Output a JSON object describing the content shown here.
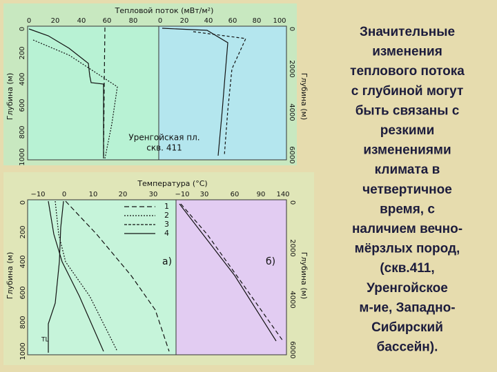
{
  "top_figure": {
    "title": "Тепловой поток (мВт/м²)",
    "x_ticks_left": [
      "0",
      "20",
      "40",
      "60",
      "80"
    ],
    "x_ticks_right": [
      "0",
      "20",
      "40",
      "60",
      "80",
      "100"
    ],
    "y_label_left": "Глубина (м)",
    "y_ticks_left": [
      "0",
      "200",
      "400",
      "600",
      "800",
      "1000"
    ],
    "y_label_right": "Глубина (м)",
    "y_ticks_right": [
      "0",
      "2000",
      "4000",
      "6000"
    ],
    "annotation": [
      "Уренгойская пл.",
      "скв. 411"
    ]
  },
  "bottom_figure": {
    "title": "Температура (°C)",
    "x_ticks_left": [
      "−10",
      "0",
      "10",
      "20",
      "30"
    ],
    "x_ticks_right": [
      "−10",
      "30",
      "60",
      "90",
      "140"
    ],
    "y_label_left": "Глубина (м)",
    "y_ticks_left": [
      "0",
      "200",
      "400",
      "600",
      "800",
      "1000"
    ],
    "y_label_right": "Глубина (м)",
    "y_ticks_right": [
      "0",
      "2000",
      "4000",
      "6000"
    ],
    "legend": [
      "1",
      "2",
      "3",
      "4"
    ],
    "panel_labels": [
      "а)",
      "б)"
    ],
    "curve_label": "TL"
  },
  "slide_text": [
    "Значительные",
    "изменения",
    "теплового потока",
    "с глубиной могут",
    "быть связаны с",
    "резкими",
    "изменениями",
    "климата в",
    "четвертичное",
    "время, с",
    "наличием вечно-",
    "мёрзлых пород,",
    "(скв.411,",
    "Уренгойское",
    "м-ие, Западно-",
    "Сибирский",
    "бассейн)."
  ]
}
